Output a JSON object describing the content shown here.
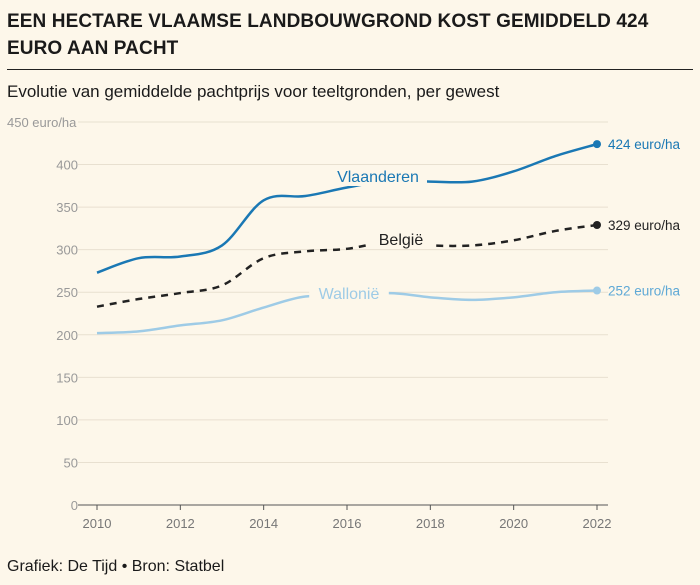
{
  "title": "EEN HECTARE VLAAMSE LANDBOUWGROND KOST GEMIDDELD 424 EURO AAN PACHT",
  "subtitle": "Evolutie van gemiddelde pachtprijs voor teeltgronden, per gewest",
  "footer": "Grafiek: De Tijd • Bron: Statbel",
  "chart_data": {
    "type": "line",
    "title": "EEN HECTARE VLAAMSE LANDBOUWGROND KOST GEMIDDELD 424 EURO AAN PACHT",
    "subtitle": "Evolutie van gemiddelde pachtprijs voor teeltgronden, per gewest",
    "xlabel": "",
    "ylabel": "",
    "x": [
      2010,
      2011,
      2012,
      2013,
      2014,
      2015,
      2016,
      2017,
      2018,
      2019,
      2020,
      2021,
      2022
    ],
    "xticks": [
      "2010",
      "2012",
      "2014",
      "2016",
      "2018",
      "2020",
      "2022"
    ],
    "yticks": [
      "0",
      "50",
      "100",
      "150",
      "200",
      "250",
      "300",
      "350",
      "400",
      "450 euro/ha"
    ],
    "ylim": [
      0,
      450
    ],
    "xlim": [
      2010,
      2022
    ],
    "grid": "horizontal",
    "series": [
      {
        "name": "Vlaanderen",
        "color": "#1a78b4",
        "style": "solid",
        "values": [
          273,
          290,
          292,
          305,
          358,
          363,
          373,
          381,
          380,
          380,
          392,
          410,
          424
        ],
        "end_label": "424 euro/ha"
      },
      {
        "name": "België",
        "color": "#222222",
        "style": "dashed",
        "values": [
          233,
          242,
          249,
          258,
          290,
          298,
          301,
          309,
          305,
          305,
          311,
          322,
          329
        ],
        "end_label": "329 euro/ha"
      },
      {
        "name": "Wallonië",
        "color": "#9ecbe6",
        "style": "solid",
        "values": [
          202,
          204,
          211,
          217,
          232,
          245,
          243,
          249,
          244,
          241,
          244,
          250,
          252
        ],
        "end_label": "252 euro/ha"
      }
    ]
  }
}
